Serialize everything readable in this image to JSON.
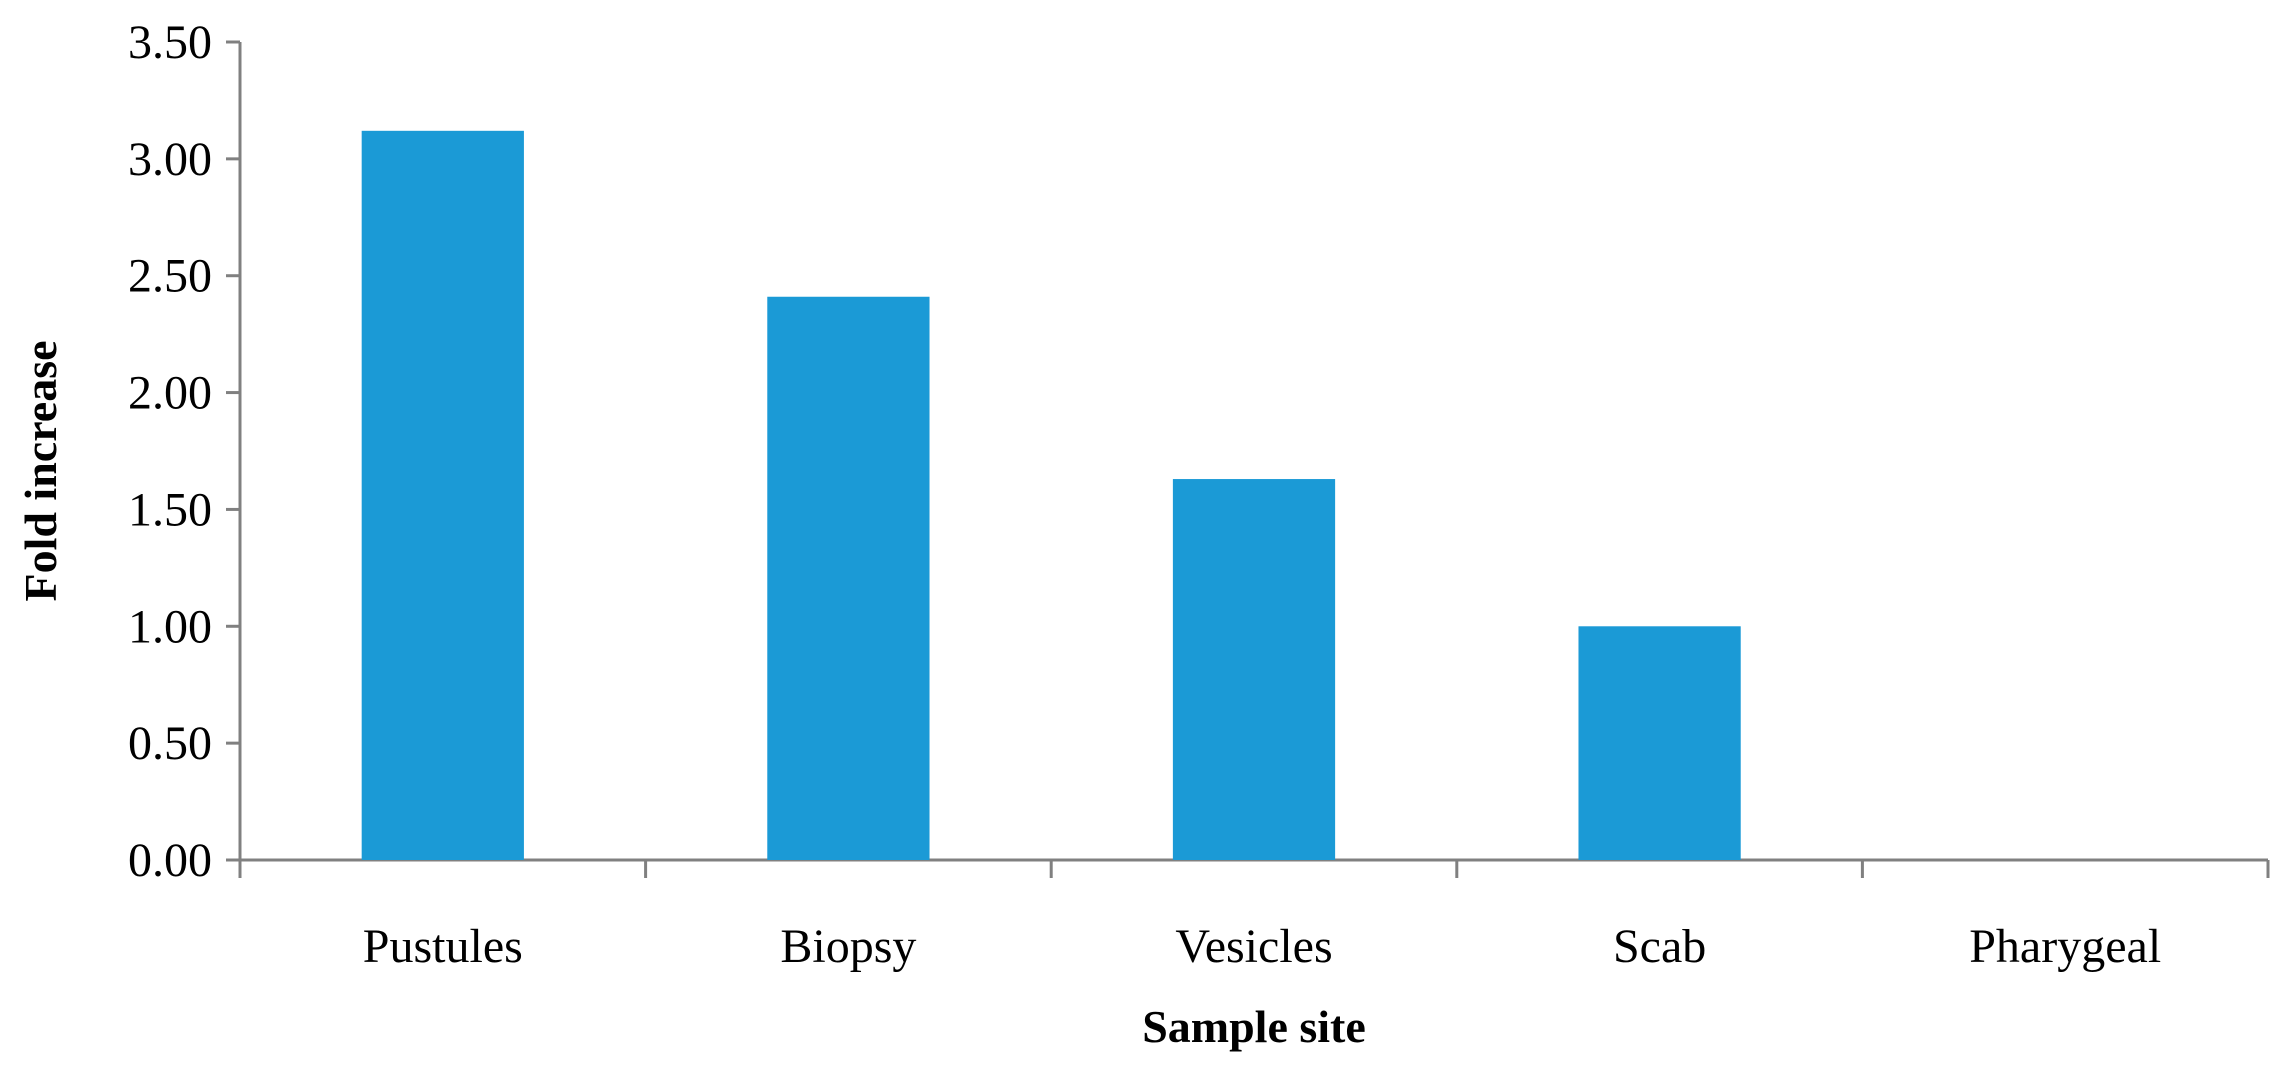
{
  "chart_data": {
    "type": "bar",
    "categories": [
      "Pustules",
      "Biopsy",
      "Vesicles",
      "Scab",
      "Pharygeal"
    ],
    "values": [
      3.12,
      2.41,
      1.63,
      1.0,
      0.0
    ],
    "title": "",
    "xlabel": "Sample site",
    "ylabel": "Fold increase",
    "ylim": [
      0,
      3.5
    ],
    "yticks": [
      "0.00",
      "0.50",
      "1.00",
      "1.50",
      "2.00",
      "2.50",
      "3.00",
      "3.50"
    ],
    "grid": false,
    "legend": "none",
    "bar_color": "#1b9ad6"
  }
}
